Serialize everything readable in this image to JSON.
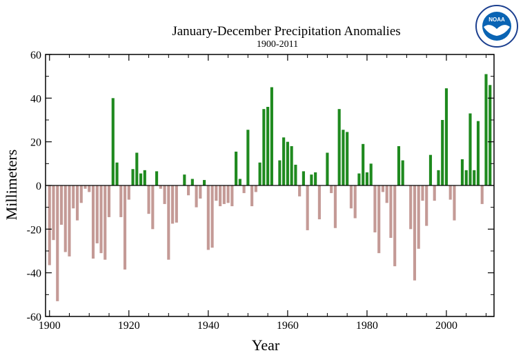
{
  "logo": {
    "name": "noaa-logo",
    "text": "NOAA"
  },
  "chart_data": {
    "type": "bar",
    "title": "January-December Precipitation Anomalies",
    "subtitle": "1900-2011",
    "xlabel": "Year",
    "ylabel": "Millimeters",
    "xlim": [
      1899,
      2012
    ],
    "ylim": [
      -60,
      60
    ],
    "xticks": [
      1900,
      1920,
      1940,
      1960,
      1980,
      2000
    ],
    "yticks": [
      -60,
      -40,
      -20,
      0,
      20,
      40,
      60
    ],
    "grid": false,
    "legend": "none",
    "positive_color": "#1f8a1f",
    "negative_color": "#c49a96",
    "x": [
      1900,
      1901,
      1902,
      1903,
      1904,
      1905,
      1906,
      1907,
      1908,
      1909,
      1910,
      1911,
      1912,
      1913,
      1914,
      1915,
      1916,
      1917,
      1918,
      1919,
      1920,
      1921,
      1922,
      1923,
      1924,
      1925,
      1926,
      1927,
      1928,
      1929,
      1930,
      1931,
      1932,
      1933,
      1934,
      1935,
      1936,
      1937,
      1938,
      1939,
      1940,
      1941,
      1942,
      1943,
      1944,
      1945,
      1946,
      1947,
      1948,
      1949,
      1950,
      1951,
      1952,
      1953,
      1954,
      1955,
      1956,
      1957,
      1958,
      1959,
      1960,
      1961,
      1962,
      1963,
      1964,
      1965,
      1966,
      1967,
      1968,
      1969,
      1970,
      1971,
      1972,
      1973,
      1974,
      1975,
      1976,
      1977,
      1978,
      1979,
      1980,
      1981,
      1982,
      1983,
      1984,
      1985,
      1986,
      1987,
      1988,
      1989,
      1990,
      1991,
      1992,
      1993,
      1994,
      1995,
      1996,
      1997,
      1998,
      1999,
      2000,
      2001,
      2002,
      2003,
      2004,
      2005,
      2006,
      2007,
      2008,
      2009,
      2010,
      2011
    ],
    "values": [
      -36.5,
      -25,
      -53,
      -18,
      -30.5,
      -32.5,
      -10.5,
      -16,
      -8,
      -1.5,
      -3,
      -33.5,
      -26.5,
      -31,
      -34,
      -14.5,
      40,
      10.5,
      -14.5,
      -38.5,
      -6.5,
      7.5,
      15,
      5.5,
      7,
      -13,
      -20,
      6.5,
      -1.5,
      -8.5,
      -34,
      -17.5,
      -17,
      0,
      5,
      -4.5,
      3,
      -10,
      -6,
      2.5,
      -29.5,
      -28.5,
      -7,
      -9.5,
      -8.5,
      -8,
      -9.5,
      15.5,
      3,
      -3.5,
      25.5,
      -9.5,
      -3,
      10.5,
      35,
      36,
      45,
      0,
      11.5,
      22,
      20,
      18,
      9.5,
      -5,
      6.5,
      -20.5,
      5,
      6,
      -15.5,
      0,
      15,
      -3.5,
      -19.5,
      35,
      25.5,
      24.5,
      -10.5,
      -15,
      5.5,
      19,
      6,
      10,
      -21.5,
      -31,
      -3,
      -8,
      -24,
      -37,
      18,
      11.5,
      0,
      -20,
      -43.5,
      -29,
      -7,
      -18.5,
      14,
      -7,
      7,
      30,
      44.5,
      -6.5,
      -16,
      0,
      12,
      7,
      33,
      7,
      29.5,
      -8.5,
      51,
      46
    ]
  }
}
